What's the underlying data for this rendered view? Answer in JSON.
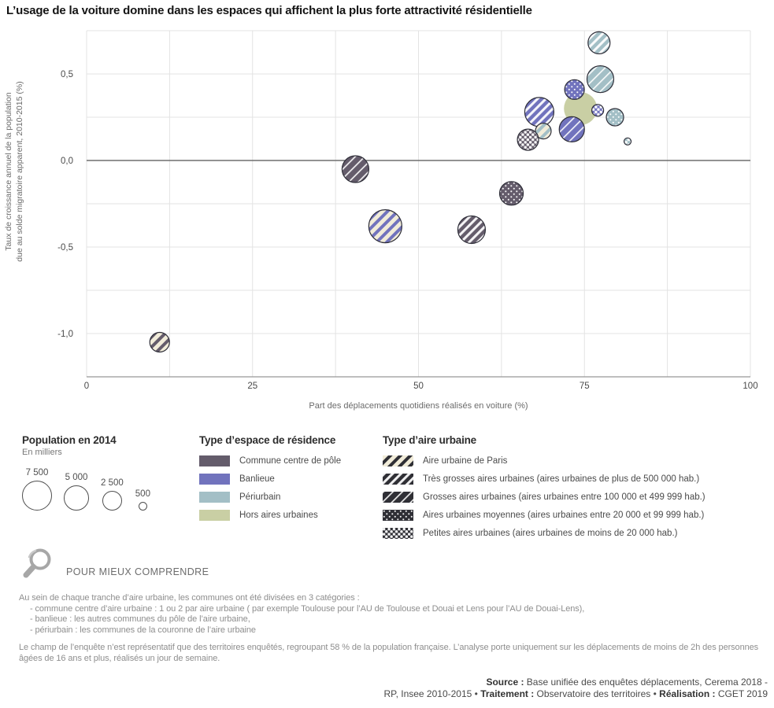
{
  "title": "L’usage de la voiture domine dans les espaces qui affichent la plus forte attractivité résidentielle",
  "colors": {
    "commune-centre": "#645c6b",
    "banlieue": "#7173bd",
    "periurbain": "#a3bfc6",
    "hors-aires-urbaines": "#c9cfa4",
    "swatch_base": "#2f2f35",
    "paris_stripe": "#f1ecd9",
    "grid": "#e3e3e3",
    "zero_line": "#6e6e6e",
    "bottom_axis": "#969696",
    "bubble_stroke": "#2e2e38"
  },
  "chart_data": {
    "type": "scatter",
    "title": "L’usage de la voiture domine dans les espaces qui affichent la plus forte attractivité résidentielle",
    "xlabel": "Part des déplacements quotidiens réalisés en voiture (%)",
    "ylabel_line1": "Taux de croissance annuel de la population",
    "ylabel_line2": "due au solde migratoire apparent, 2010-2015 (%)",
    "xlim": [
      0,
      100
    ],
    "ylim": [
      -1.25,
      0.75
    ],
    "x_grid_step": 12.5,
    "y_grid_step": 0.25,
    "grid": true,
    "x_ticks": [
      {
        "v": 0,
        "label": "0"
      },
      {
        "v": 25,
        "label": "25"
      },
      {
        "v": 50,
        "label": "50"
      },
      {
        "v": 75,
        "label": "75"
      },
      {
        "v": 100,
        "label": "100"
      }
    ],
    "y_ticks": [
      {
        "v": 0.5,
        "label": "0,5"
      },
      {
        "v": 0.0,
        "label": "0,0"
      },
      {
        "v": -0.5,
        "label": "-0,5"
      },
      {
        "v": -1.0,
        "label": "-1,0"
      }
    ],
    "size_note": "bubble radius in px, area proportional to population 2014 (thousands)",
    "points": [
      {
        "espace": "hors-aires-urbaines",
        "aire": "none",
        "espace_label": "Hors aires urbaines",
        "aire_label": "",
        "x": 74.4,
        "y": 0.3,
        "r": 21
      },
      {
        "espace": "banlieue",
        "aire": "tres-grosses",
        "espace_label": "Banlieue",
        "aire_label": "Très grosses aires urbaines",
        "x": 68.2,
        "y": 0.28,
        "r": 18.5
      },
      {
        "espace": "periurbain",
        "aire": "paris",
        "espace_label": "Périurbain",
        "aire_label": "Aire urbaine de Paris",
        "x": 68.8,
        "y": 0.17,
        "r": 10
      },
      {
        "espace": "commune-centre",
        "aire": "petites",
        "espace_label": "Commune centre de pôle",
        "aire_label": "Petites aires urbaines",
        "x": 66.5,
        "y": 0.12,
        "r": 13.5
      },
      {
        "espace": "commune-centre",
        "aire": "moyennes",
        "espace_label": "Commune centre de pôle",
        "aire_label": "Aires urbaines moyennes",
        "x": 64.0,
        "y": -0.19,
        "r": 15
      },
      {
        "espace": "commune-centre",
        "aire": "grosses",
        "espace_label": "Commune centre de pôle",
        "aire_label": "Grosses aires urbaines",
        "x": 40.5,
        "y": -0.05,
        "r": 17
      },
      {
        "espace": "commune-centre",
        "aire": "tres-grosses",
        "espace_label": "Commune centre de pôle",
        "aire_label": "Très grosses aires urbaines",
        "x": 58.0,
        "y": -0.4,
        "r": 17.5
      },
      {
        "espace": "commune-centre",
        "aire": "paris",
        "espace_label": "Commune centre de pôle",
        "aire_label": "Aire urbaine de Paris",
        "x": 11.0,
        "y": -1.05,
        "r": 12.5
      },
      {
        "espace": "banlieue",
        "aire": "paris",
        "espace_label": "Banlieue",
        "aire_label": "Aire urbaine de Paris",
        "x": 45.0,
        "y": -0.38,
        "r": 21
      },
      {
        "espace": "banlieue",
        "aire": "grosses",
        "espace_label": "Banlieue",
        "aire_label": "Grosses aires urbaines",
        "x": 73.1,
        "y": 0.18,
        "r": 16
      },
      {
        "espace": "banlieue",
        "aire": "moyennes",
        "espace_label": "Banlieue",
        "aire_label": "Aires urbaines moyennes",
        "x": 73.5,
        "y": 0.41,
        "r": 12.5
      },
      {
        "espace": "periurbain",
        "aire": "grosses",
        "espace_label": "Périurbain",
        "aire_label": "Grosses aires urbaines",
        "x": 77.4,
        "y": 0.47,
        "r": 17
      },
      {
        "espace": "periurbain",
        "aire": "tres-grosses",
        "espace_label": "Périurbain",
        "aire_label": "Très grosses aires urbaines",
        "x": 77.2,
        "y": 0.68,
        "r": 14
      },
      {
        "espace": "banlieue",
        "aire": "petites",
        "espace_label": "Banlieue",
        "aire_label": "Petites aires urbaines",
        "x": 77.0,
        "y": 0.29,
        "r": 7.5
      },
      {
        "espace": "periurbain",
        "aire": "moyennes",
        "espace_label": "Périurbain",
        "aire_label": "Aires urbaines moyennes",
        "x": 79.6,
        "y": 0.25,
        "r": 11
      },
      {
        "espace": "periurbain",
        "aire": "petites",
        "espace_label": "Périurbain",
        "aire_label": "Petites aires urbaines",
        "x": 81.5,
        "y": 0.11,
        "r": 4.5
      }
    ]
  },
  "population_legend": {
    "heading": "Population en 2014",
    "subheading": "En milliers",
    "circles": [
      {
        "label": "7 500",
        "d": 38
      },
      {
        "label": "5 000",
        "d": 32
      },
      {
        "label": "2 500",
        "d": 25
      },
      {
        "label": "500",
        "d": 11
      }
    ]
  },
  "espace_legend": {
    "heading": "Type d’espace de résidence",
    "items": [
      {
        "key": "commune-centre",
        "label": "Commune centre de pôle"
      },
      {
        "key": "banlieue",
        "label": "Banlieue"
      },
      {
        "key": "periurbain",
        "label": "Périurbain"
      },
      {
        "key": "hors-aires-urbaines",
        "label": "Hors aires urbaines"
      }
    ]
  },
  "aire_legend": {
    "heading": "Type d’aire urbaine",
    "items": [
      {
        "key": "paris",
        "label": "Aire urbaine de Paris"
      },
      {
        "key": "tres-grosses",
        "label": "Très grosses aires urbaines (aires urbaines de plus de 500 000 hab.)"
      },
      {
        "key": "grosses",
        "label": "Grosses aires urbaines (aires urbaines entre 100 000 et 499 999 hab.)"
      },
      {
        "key": "moyennes",
        "label": "Aires urbaines moyennes (aires urbaines entre 20 000 et 99 999 hab.)"
      },
      {
        "key": "petites",
        "label": "Petites aires urbaines (aires urbaines de moins de 20 000 hab.)"
      }
    ]
  },
  "explainer": {
    "heading": "POUR MIEUX COMPRENDRE",
    "intro": "Au sein de chaque tranche d’aire urbaine, les communes ont été divisées en 3 catégories :",
    "bullets": [
      "- commune centre d’aire urbaine : 1 ou 2 par aire urbaine ( par exemple Toulouse pour l’AU de Toulouse et Douai et Lens pour l’AU de Douai-Lens),",
      "- banlieue : les autres communes du pôle de l’aire urbaine,",
      "- périurbain : les communes de la couronne de l’aire urbaine"
    ],
    "paragraph2": "Le champ de l’enquête n’est représentatif que des territoires enquêtés, regroupant 58 % de la population française. L’analyse porte uniquement sur les déplacements de moins de 2h des personnes âgées de 16 ans et plus, réalisés un jour de semaine."
  },
  "source": {
    "lines": [
      [
        {
          "b": true,
          "t": "Source :"
        },
        {
          "b": false,
          "t": " Base unifiée des enquêtes déplacements, Cerema 2018 -"
        }
      ],
      [
        {
          "b": false,
          "t": "RP, Insee 2010-2015 • "
        },
        {
          "b": true,
          "t": "Traitement :"
        },
        {
          "b": false,
          "t": " Observatoire des territoires • "
        },
        {
          "b": true,
          "t": "Réalisation :"
        },
        {
          "b": false,
          "t": " CGET 2019"
        }
      ]
    ]
  }
}
